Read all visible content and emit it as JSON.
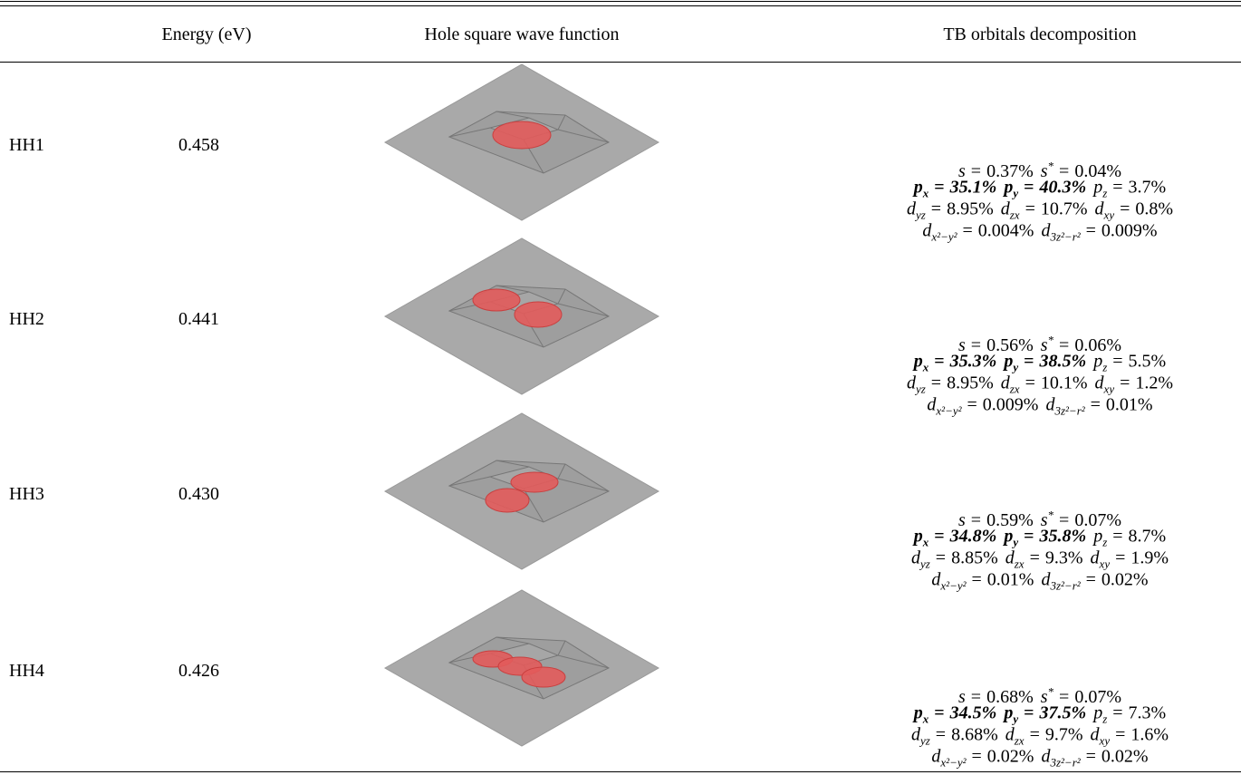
{
  "table": {
    "headers": [
      "Energy (eV)",
      "Hole square wave function",
      "TB orbitals decomposition"
    ],
    "rows": [
      {
        "label": "HH1",
        "energy": "0.458",
        "decomposition": [
          [
            {
              "symbol": "s",
              "relation": "=",
              "value": "0.37%"
            },
            {
              "symbol": "s",
              "superscript": "*",
              "relation": "=",
              "value": "0.04%"
            }
          ],
          [
            {
              "symbol": "p",
              "subscript": "x",
              "relation": "=",
              "value": "35.1%",
              "bold": true
            },
            {
              "symbol": "p",
              "subscript": "y",
              "relation": "=",
              "value": "40.3%",
              "bold": true
            },
            {
              "symbol": "p",
              "subscript": "z",
              "relation": "=",
              "value": "3.7%"
            }
          ],
          [
            {
              "symbol": "d",
              "subscript": "yz",
              "relation": "=",
              "value": "8.95%"
            },
            {
              "symbol": "d",
              "subscript": "zx",
              "relation": "=",
              "value": "10.7%"
            },
            {
              "symbol": "d",
              "subscript": "xy",
              "relation": "=",
              "value": "0.8%"
            }
          ],
          [
            {
              "symbol": "d",
              "subscript": "x²−y²",
              "relation": "=",
              "value": "0.004%"
            },
            {
              "symbol": "d",
              "subscript": "3z²−r²",
              "relation": "=",
              "value": "0.009%"
            }
          ]
        ]
      },
      {
        "label": "HH2",
        "energy": "0.441",
        "decomposition": [
          [
            {
              "symbol": "s",
              "relation": "=",
              "value": "0.56%"
            },
            {
              "symbol": "s",
              "superscript": "*",
              "relation": "=",
              "value": "0.06%"
            }
          ],
          [
            {
              "symbol": "p",
              "subscript": "x",
              "relation": "=",
              "value": "35.3%",
              "bold": true
            },
            {
              "symbol": "p",
              "subscript": "y",
              "relation": "=",
              "value": "38.5%",
              "bold": true
            },
            {
              "symbol": "p",
              "subscript": "z",
              "relation": "=",
              "value": "5.5%"
            }
          ],
          [
            {
              "symbol": "d",
              "subscript": "yz",
              "relation": "=",
              "value": "8.95%"
            },
            {
              "symbol": "d",
              "subscript": "zx",
              "relation": "=",
              "value": "10.1%"
            },
            {
              "symbol": "d",
              "subscript": "xy",
              "relation": "=",
              "value": "1.2%"
            }
          ],
          [
            {
              "symbol": "d",
              "subscript": "x²−y²",
              "relation": "=",
              "value": "0.009%"
            },
            {
              "symbol": "d",
              "subscript": "3z²−r²",
              "relation": "=",
              "value": "0.01%"
            }
          ]
        ]
      },
      {
        "label": "HH3",
        "energy": "0.430",
        "decomposition": [
          [
            {
              "symbol": "s",
              "relation": "=",
              "value": "0.59%"
            },
            {
              "symbol": "s",
              "superscript": "*",
              "relation": "=",
              "value": "0.07%"
            }
          ],
          [
            {
              "symbol": "p",
              "subscript": "x",
              "relation": "=",
              "value": "34.8%",
              "bold": true
            },
            {
              "symbol": "p",
              "subscript": "y",
              "relation": "=",
              "value": "35.8%",
              "bold": true
            },
            {
              "symbol": "p",
              "subscript": "z",
              "relation": "=",
              "value": "8.7%"
            }
          ],
          [
            {
              "symbol": "d",
              "subscript": "yz",
              "relation": "=",
              "value": "8.85%"
            },
            {
              "symbol": "d",
              "subscript": "zx",
              "relation": "=",
              "value": "9.3%"
            },
            {
              "symbol": "d",
              "subscript": "xy",
              "relation": "=",
              "value": "1.9%"
            }
          ],
          [
            {
              "symbol": "d",
              "subscript": "x²−y²",
              "relation": "=",
              "value": "0.01%"
            },
            {
              "symbol": "d",
              "subscript": "3z²−r²",
              "relation": "=",
              "value": "0.02%"
            }
          ]
        ]
      },
      {
        "label": "HH4",
        "energy": "0.426",
        "decomposition": [
          [
            {
              "symbol": "s",
              "relation": "=",
              "value": "0.68%"
            },
            {
              "symbol": "s",
              "superscript": "*",
              "relation": "=",
              "value": "0.07%"
            }
          ],
          [
            {
              "symbol": "p",
              "subscript": "x",
              "relation": "=",
              "value": "34.5%",
              "bold": true
            },
            {
              "symbol": "p",
              "subscript": "y",
              "relation": "=",
              "value": "37.5%",
              "bold": true
            },
            {
              "symbol": "p",
              "subscript": "z",
              "relation": "=",
              "value": "7.3%"
            }
          ],
          [
            {
              "symbol": "d",
              "subscript": "yz",
              "relation": "=",
              "value": "8.68%"
            },
            {
              "symbol": "d",
              "subscript": "zx",
              "relation": "=",
              "value": "9.7%"
            },
            {
              "symbol": "d",
              "subscript": "xy",
              "relation": "=",
              "value": "1.6%"
            }
          ],
          [
            {
              "symbol": "d",
              "subscript": "x²−y²",
              "relation": "=",
              "value": "0.02%"
            },
            {
              "symbol": "d",
              "subscript": "3z²−r²",
              "relation": "=",
              "value": "0.02%"
            }
          ]
        ]
      }
    ]
  }
}
